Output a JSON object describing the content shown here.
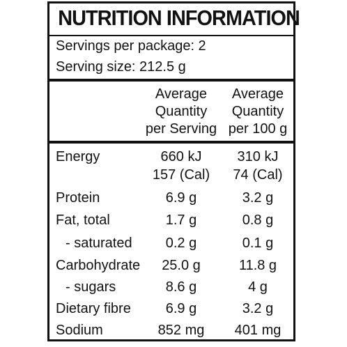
{
  "panel": {
    "title": "NUTRITION INFORMATION",
    "servings_per_package": "Servings per package: 2",
    "serving_size": "Serving size: 212.5 g"
  },
  "columns": [
    {
      "lines": [
        "Average",
        "Quantity",
        "per Serving"
      ]
    },
    {
      "lines": [
        "Average",
        "Quantity",
        "per 100 g"
      ]
    }
  ],
  "energy": {
    "label": "Energy",
    "per_serving_kj": "660 kJ",
    "per_serving_cal": "157 (Cal)",
    "per_100g_kj": "310 kJ",
    "per_100g_cal": "74 (Cal)"
  },
  "rows": [
    {
      "label": "Protein",
      "per_serving": "6.9 g",
      "per_100g": "3.2 g"
    },
    {
      "label": "Fat, total",
      "per_serving": "1.7 g",
      "per_100g": "0.8 g"
    },
    {
      "label": "- saturated",
      "per_serving": "0.2 g",
      "per_100g": "0.1 g"
    },
    {
      "label": "Carbohydrate",
      "per_serving": "25.0 g",
      "per_100g": "11.8 g"
    },
    {
      "label": "- sugars",
      "per_serving": "8.6 g",
      "per_100g": "4 g"
    },
    {
      "label": "Dietary fibre",
      "per_serving": "6.9 g",
      "per_100g": "3.2 g"
    },
    {
      "label": "Sodium",
      "per_serving": "852 mg",
      "per_100g": "401 mg"
    }
  ]
}
